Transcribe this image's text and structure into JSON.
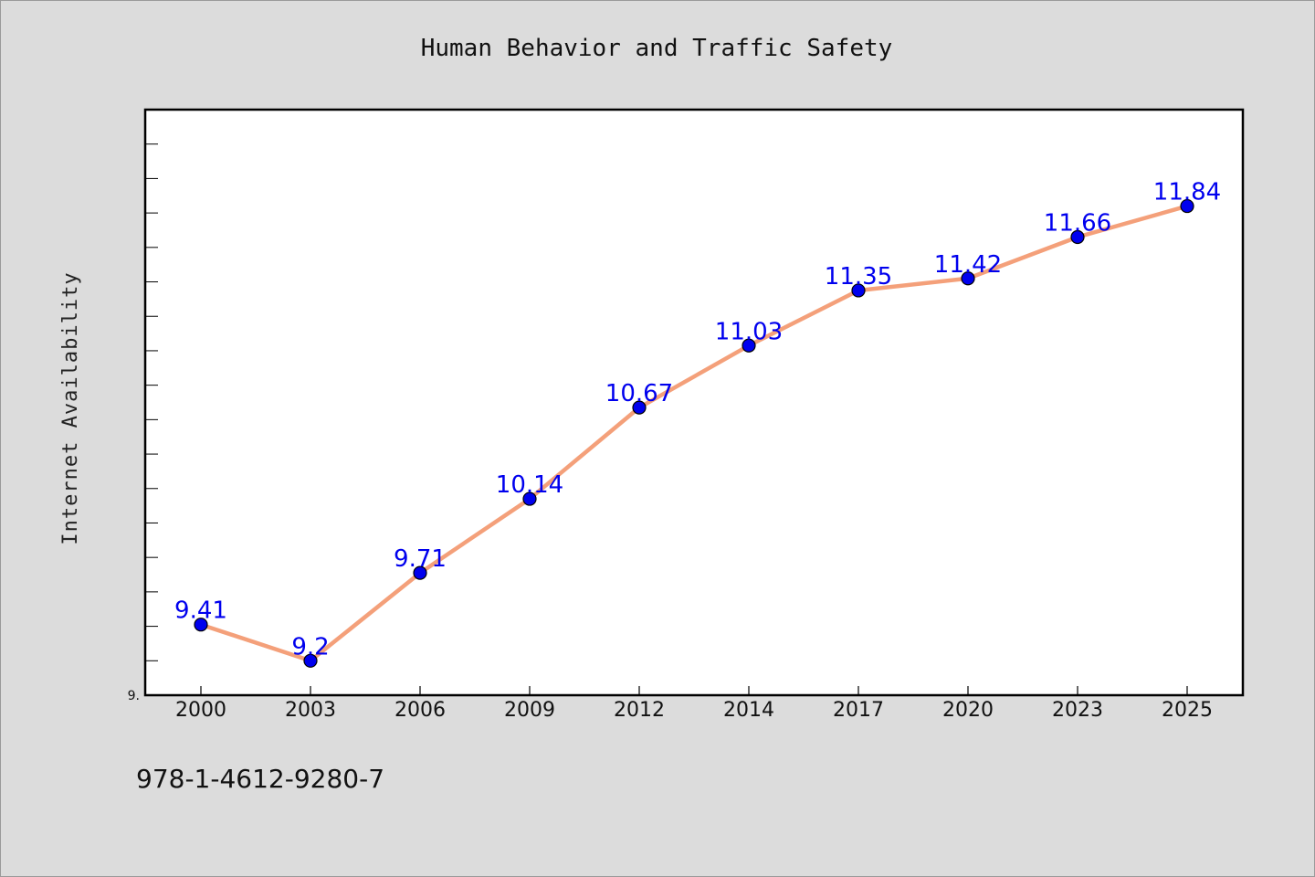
{
  "chart_data": {
    "type": "line",
    "title": "Human Behavior and Traffic Safety",
    "ylabel": "Internet Availability",
    "xlabel": "",
    "categories": [
      "2000",
      "2003",
      "2006",
      "2009",
      "2012",
      "2014",
      "2017",
      "2020",
      "2023",
      "2025"
    ],
    "series": [
      {
        "values": [
          9.41,
          9.2,
          9.71,
          10.14,
          10.67,
          11.03,
          11.35,
          11.42,
          11.66,
          11.84
        ]
      }
    ],
    "data_labels": [
      "9.41",
      "9.2",
      "9.71",
      "10.14",
      "10.67",
      "11.03",
      "11.35",
      "11.42",
      "11.66",
      "11.84"
    ],
    "ylim": [
      9.0,
      12.4
    ],
    "ytick_labels": [
      "9."
    ],
    "line_color": "#f4a07a",
    "marker_color": "#0000ee",
    "label_color": "#0000ee",
    "grid": false,
    "legend": "none"
  },
  "footer": {
    "isbn": "978-1-4612-9280-7"
  }
}
